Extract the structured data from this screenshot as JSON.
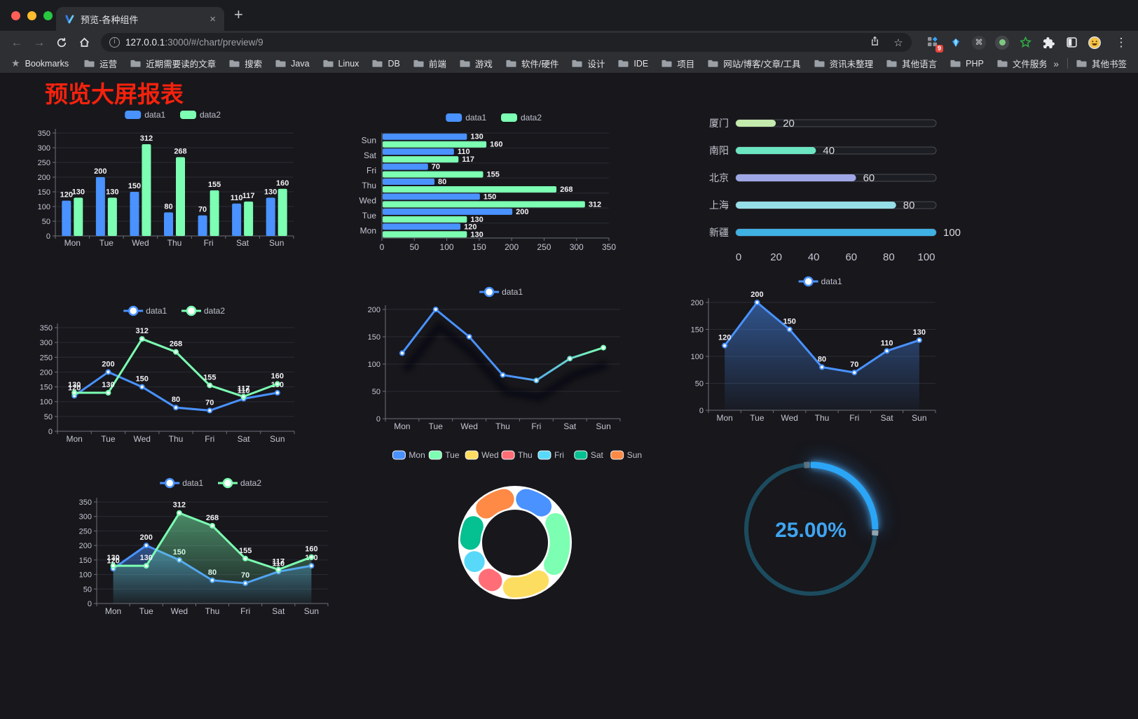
{
  "browser": {
    "tab": {
      "title": "预览-各种组件"
    },
    "icons": {
      "back": "←",
      "forward": "→",
      "info": "i",
      "star": "☆",
      "bookmarks_star": "★",
      "menu": "⋮",
      "command": "⌘",
      "new_tab": "+",
      "close_tab": "×",
      "overflow": "»"
    },
    "toolbar": {
      "url_host": "127.0.0.1",
      "url_rest": ":3000/#/chart/preview/9",
      "extension_badge": "9"
    },
    "bookmarks": {
      "bar_label": "Bookmarks",
      "items": [
        "运营",
        "近期需要读的文章",
        "搜索",
        "Java",
        "Linux",
        "DB",
        "前端",
        "游戏",
        "软件/硬件",
        "设计",
        "IDE",
        "项目",
        "网站/博客/文章/工具",
        "资讯未整理",
        "其他语言",
        "PHP",
        "文件服务器"
      ],
      "other_label": "其他书签"
    }
  },
  "page": {
    "title": "预览大屏报表"
  },
  "chart_data": [
    {
      "id": "bar-vertical",
      "type": "bar",
      "legend_position": "top",
      "grid": true,
      "categories": [
        "Mon",
        "Tue",
        "Wed",
        "Thu",
        "Fri",
        "Sat",
        "Sun"
      ],
      "series": [
        {
          "name": "data1",
          "color": "#4992ff",
          "values": [
            120,
            200,
            150,
            80,
            70,
            110,
            130
          ]
        },
        {
          "name": "data2",
          "color": "#7cffb2",
          "values": [
            130,
            130,
            312,
            268,
            155,
            117,
            160
          ]
        }
      ],
      "ylim": [
        0,
        350
      ],
      "ytick_step": 50,
      "show_value_labels": true
    },
    {
      "id": "bar-horizontal",
      "type": "bar",
      "orientation": "horizontal",
      "legend_position": "top",
      "categories": [
        "Mon",
        "Tue",
        "Wed",
        "Thu",
        "Fri",
        "Sat",
        "Sun"
      ],
      "display_order": "Sun at top, Mon at bottom",
      "series": [
        {
          "name": "data1",
          "color": "#4992ff",
          "values": [
            120,
            200,
            150,
            80,
            70,
            110,
            130
          ]
        },
        {
          "name": "data2",
          "color": "#7cffb2",
          "values": [
            130,
            130,
            312,
            268,
            155,
            117,
            160
          ]
        }
      ],
      "xlim": [
        0,
        350
      ],
      "xtick_step": 50,
      "show_value_labels": true
    },
    {
      "id": "progress-bars",
      "type": "bar",
      "orientation": "horizontal",
      "items": [
        {
          "label": "厦门",
          "value": 20,
          "color": "#c4ebad"
        },
        {
          "label": "南阳",
          "value": 40,
          "color": "#6be6c1"
        },
        {
          "label": "北京",
          "value": 60,
          "color": "#a0a7e6"
        },
        {
          "label": "上海",
          "value": 80,
          "color": "#96dee8"
        },
        {
          "label": "新疆",
          "value": 100,
          "color": "#3fb1e3"
        }
      ],
      "xlim": [
        0,
        100
      ],
      "xticks": [
        0,
        20,
        40,
        60,
        80,
        100
      ]
    },
    {
      "id": "line-two-series",
      "type": "line",
      "legend_position": "top",
      "categories": [
        "Mon",
        "Tue",
        "Wed",
        "Thu",
        "Fri",
        "Sat",
        "Sun"
      ],
      "series": [
        {
          "name": "data1",
          "color": "#4992ff",
          "values": [
            120,
            200,
            150,
            80,
            70,
            110,
            130
          ]
        },
        {
          "name": "data2",
          "color": "#7cffb2",
          "values": [
            130,
            130,
            312,
            268,
            155,
            117,
            160
          ]
        }
      ],
      "ylim": [
        0,
        350
      ],
      "ytick_step": 50,
      "show_value_labels": true
    },
    {
      "id": "line-gradient",
      "type": "line",
      "legend_position": "top",
      "categories": [
        "Mon",
        "Tue",
        "Wed",
        "Thu",
        "Fri",
        "Sat",
        "Sun"
      ],
      "series": [
        {
          "name": "data1",
          "gradient": [
            "#4992ff",
            "#7cffb2"
          ],
          "values": [
            120,
            200,
            150,
            80,
            70,
            110,
            130
          ]
        }
      ],
      "ylim": [
        0,
        200
      ],
      "ytick_step": 50,
      "show_value_labels": false,
      "shadow": true
    },
    {
      "id": "line-area",
      "type": "area",
      "legend_position": "top",
      "categories": [
        "Mon",
        "Tue",
        "Wed",
        "Thu",
        "Fri",
        "Sat",
        "Sun"
      ],
      "series": [
        {
          "name": "data1",
          "color": "#4992ff",
          "area": true,
          "values": [
            120,
            200,
            150,
            80,
            70,
            110,
            130
          ]
        }
      ],
      "ylim": [
        0,
        200
      ],
      "ytick_step": 50,
      "show_value_labels": true
    },
    {
      "id": "line-two-series-area",
      "type": "area",
      "legend_position": "top",
      "categories": [
        "Mon",
        "Tue",
        "Wed",
        "Thu",
        "Fri",
        "Sat",
        "Sun"
      ],
      "series": [
        {
          "name": "data1",
          "color": "#4992ff",
          "area": true,
          "values": [
            120,
            200,
            150,
            80,
            70,
            110,
            130
          ]
        },
        {
          "name": "data2",
          "color": "#7cffb2",
          "area": true,
          "values": [
            130,
            130,
            312,
            268,
            155,
            117,
            160
          ]
        }
      ],
      "ylim": [
        0,
        350
      ],
      "ytick_step": 50,
      "show_value_labels": true
    },
    {
      "id": "donut",
      "type": "pie",
      "legend_position": "top",
      "categories": [
        "Mon",
        "Tue",
        "Wed",
        "Thu",
        "Fri",
        "Sat",
        "Sun"
      ],
      "values": [
        120,
        200,
        150,
        80,
        70,
        110,
        130
      ],
      "colors": [
        "#4992ff",
        "#7cffb2",
        "#fddd60",
        "#ff6e76",
        "#58d9f9",
        "#05c091",
        "#ff8a45"
      ],
      "inner_radius_ratio": 0.6,
      "border_color": "#ffffff"
    },
    {
      "id": "gauge-progress",
      "type": "gauge",
      "value": 25,
      "display": "25.00%",
      "color": "#2ba6f7",
      "track_color": "#1c4b5e",
      "text_color": "#3fa5f0"
    }
  ]
}
